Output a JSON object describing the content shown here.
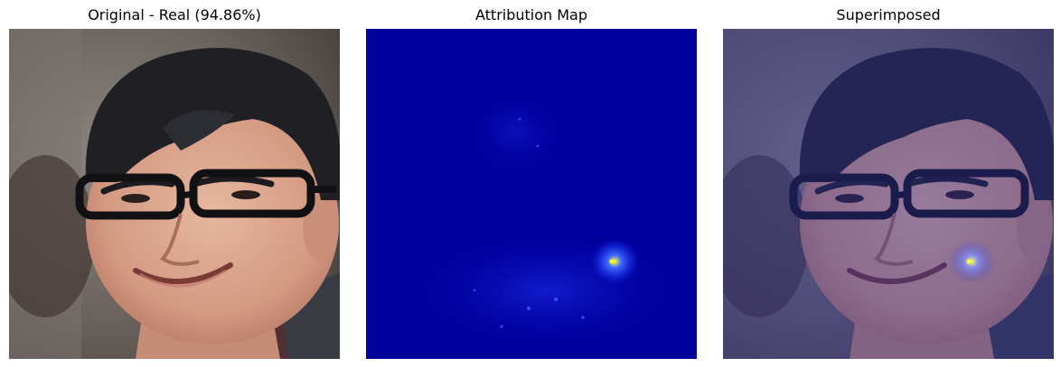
{
  "panels": [
    {
      "title": "Original - Real (94.86%)"
    },
    {
      "title": "Attribution Map"
    },
    {
      "title": "Superimposed"
    }
  ],
  "colors": {
    "heatmap_background": "#00009c",
    "hotspot": "#ffff00",
    "skin": "#d9a48c",
    "hair": "#1f1f24",
    "overlay_tint": "#2a2a9a"
  }
}
